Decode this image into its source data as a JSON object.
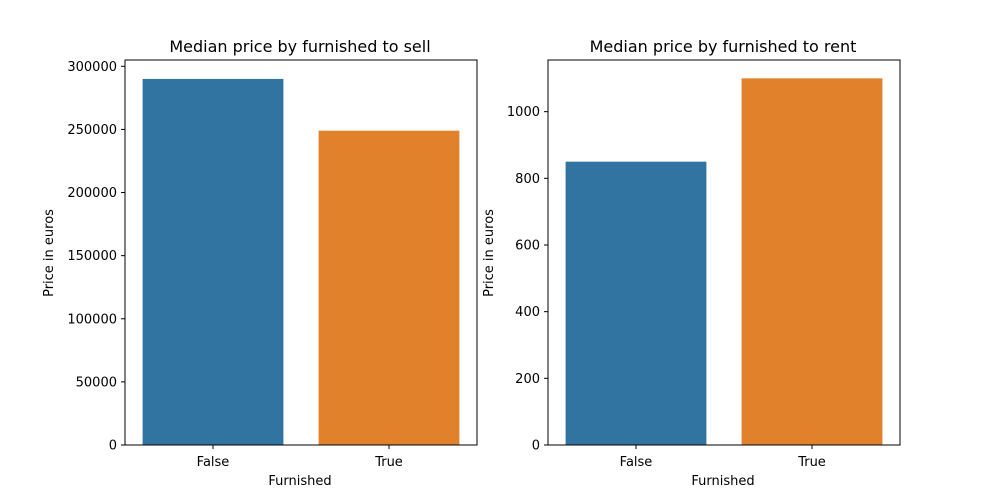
{
  "chart_data": [
    {
      "type": "bar",
      "title": "Median price by furnished to sell",
      "xlabel": "Furnished",
      "ylabel": "Price in euros",
      "categories": [
        "False",
        "True"
      ],
      "values": [
        290000,
        249000
      ],
      "colors": [
        "#3274a1",
        "#e1812c"
      ],
      "ylim": [
        0,
        305000
      ],
      "yticks": [
        0,
        50000,
        100000,
        150000,
        200000,
        250000,
        300000
      ],
      "ytick_labels": [
        "0",
        "50000",
        "100000",
        "150000",
        "200000",
        "250000",
        "300000"
      ],
      "grid": false,
      "legend": "none"
    },
    {
      "type": "bar",
      "title": "Median price by furnished to rent",
      "xlabel": "Furnished",
      "ylabel": "Price in euros",
      "categories": [
        "False",
        "True"
      ],
      "values": [
        850,
        1100
      ],
      "colors": [
        "#3274a1",
        "#e1812c"
      ],
      "ylim": [
        0,
        1155
      ],
      "yticks": [
        0,
        200,
        400,
        600,
        800,
        1000
      ],
      "ytick_labels": [
        "0",
        "200",
        "400",
        "600",
        "800",
        "1000"
      ],
      "grid": false,
      "legend": "none"
    }
  ]
}
